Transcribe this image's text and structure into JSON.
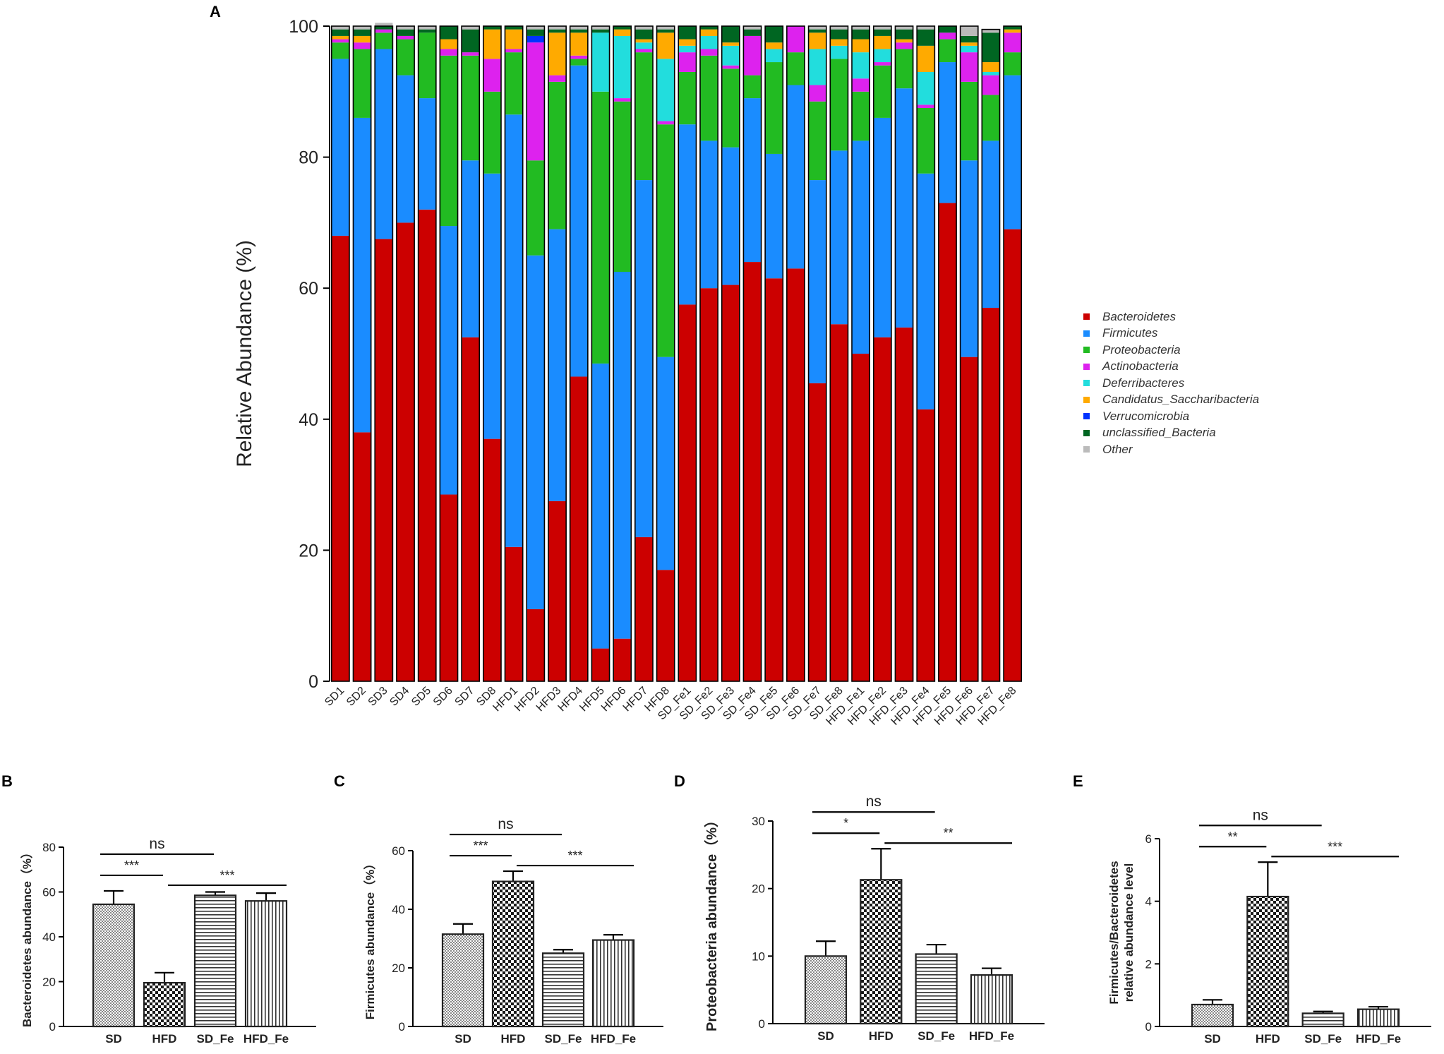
{
  "chart_data": [
    {
      "panel": "A",
      "type": "bar",
      "stacked": true,
      "ylabel": "Relative Abundance (%)",
      "ylim": [
        0,
        100
      ],
      "yticks": [
        0,
        20,
        40,
        60,
        80,
        100
      ],
      "categories": [
        "SD1",
        "SD2",
        "SD3",
        "SD4",
        "SD5",
        "SD6",
        "SD7",
        "SD8",
        "HFD1",
        "HFD2",
        "HFD3",
        "HFD4",
        "HFD5",
        "HFD6",
        "HFD7",
        "HFD8",
        "SD_Fe1",
        "SD_Fe2",
        "SD_Fe3",
        "SD_Fe4",
        "SD_Fe5",
        "SD_Fe6",
        "SD_Fe7",
        "SD_Fe8",
        "HFD_Fe1",
        "HFD_Fe2",
        "HFD_Fe3",
        "HFD_Fe4",
        "HFD_Fe5",
        "HFD_Fe6",
        "HFD_Fe7",
        "HFD_Fe8"
      ],
      "series": [
        {
          "name": "Bacteroidetes",
          "color": "#cc0000",
          "values": [
            68,
            38,
            67.5,
            70,
            72,
            28.5,
            52.5,
            37,
            20.5,
            11,
            27.5,
            46.5,
            5,
            6.5,
            22,
            17,
            57.5,
            60,
            60.5,
            64,
            61.5,
            63,
            45.5,
            54.5,
            50,
            52.5,
            54,
            41.5,
            73,
            49.5,
            57,
            69
          ]
        },
        {
          "name": "Firmicutes",
          "color": "#1a8cff",
          "values": [
            27,
            48,
            29,
            22.5,
            17,
            41,
            27,
            40.5,
            66,
            54,
            41.5,
            47.5,
            43.5,
            56,
            54.5,
            32.5,
            27.5,
            22.5,
            21,
            25,
            19,
            28,
            31,
            26.5,
            32.5,
            33.5,
            36.5,
            36,
            21.5,
            30,
            25.5,
            23.5
          ]
        },
        {
          "name": "Proteobacteria",
          "color": "#22bb22",
          "values": [
            2.5,
            10.5,
            2.5,
            5.5,
            10,
            26,
            16,
            12.5,
            9.5,
            14.5,
            22.5,
            1,
            41.5,
            26,
            19.5,
            35.5,
            8,
            13,
            12,
            3.5,
            14,
            5,
            12,
            14,
            7.5,
            8,
            6,
            10,
            3.5,
            12,
            7,
            3.5
          ]
        },
        {
          "name": "Actinobacteria",
          "color": "#dd22ee",
          "values": [
            0.5,
            1,
            0.5,
            0.5,
            0,
            1,
            0.5,
            5,
            0.5,
            18,
            1,
            0.5,
            0,
            0.5,
            0.5,
            0.5,
            3,
            1,
            0.5,
            6,
            0,
            4,
            2.5,
            0,
            2,
            0.5,
            1,
            0.5,
            1,
            4.5,
            3,
            3
          ]
        },
        {
          "name": "Deferribacteres",
          "color": "#22dddd",
          "values": [
            0,
            0,
            0,
            0,
            0,
            0,
            0,
            0,
            0,
            0,
            0,
            0,
            9,
            9.5,
            1,
            9.5,
            1,
            2,
            3,
            0,
            2,
            0,
            5.5,
            2,
            4,
            2,
            0,
            5,
            0,
            1,
            0.5,
            0
          ]
        },
        {
          "name": "Candidatus_Saccharibacteria",
          "color": "#ffaa00",
          "values": [
            0.5,
            1,
            0,
            0,
            0,
            1.5,
            0,
            4.5,
            3,
            0,
            6.5,
            3.5,
            0,
            1,
            0.5,
            4,
            1,
            1,
            0.5,
            0,
            1,
            0,
            2.5,
            1,
            2,
            2,
            0.5,
            4,
            0,
            0.5,
            1.5,
            0.5
          ]
        },
        {
          "name": "Verrucomicrobia",
          "color": "#0033ff",
          "values": [
            0,
            0,
            0,
            0,
            0,
            0,
            0,
            0,
            0,
            1,
            0,
            0,
            0,
            0,
            0,
            0,
            0,
            0,
            0,
            0,
            0,
            0,
            0,
            0,
            0,
            0,
            0,
            0,
            0,
            0,
            0,
            0
          ]
        },
        {
          "name": "unclassified_Bacteria",
          "color": "#006622",
          "values": [
            1,
            1,
            0.5,
            1,
            0.5,
            2,
            3.5,
            0.5,
            0.5,
            1,
            0.5,
            0.5,
            0.5,
            0.5,
            1.5,
            0.5,
            2,
            0.5,
            2.5,
            1,
            2.5,
            0,
            0.5,
            1.5,
            1.5,
            1,
            1.5,
            2.5,
            1,
            1,
            4.5,
            0.5
          ]
        },
        {
          "name": "Other",
          "color": "#bbbbbb",
          "values": [
            0.5,
            0.5,
            0.5,
            0.5,
            0.5,
            0,
            0.5,
            0,
            0,
            0.5,
            0.5,
            0.5,
            0.5,
            0,
            0.5,
            0.5,
            0,
            0,
            0,
            0.5,
            0,
            0,
            0.5,
            0.5,
            0.5,
            0.5,
            0.5,
            0.5,
            0,
            1.5,
            0.5,
            0
          ]
        }
      ],
      "legend": "right"
    },
    {
      "panel": "B",
      "type": "bar",
      "ylabel": "Bacteroidetes abundance（%）",
      "ylim": [
        0,
        80
      ],
      "yticks": [
        0,
        20,
        40,
        60,
        80
      ],
      "categories": [
        "SD",
        "HFD",
        "SD_Fe",
        "HFD_Fe"
      ],
      "values": [
        54.5,
        19.5,
        58.5,
        56
      ],
      "errors": [
        6,
        4.5,
        1.5,
        3.5
      ],
      "patterns": [
        "dots",
        "checker",
        "hlines",
        "vlines"
      ],
      "significance": [
        {
          "from": 0,
          "to": 1,
          "label": "***",
          "level": 0
        },
        {
          "from": 1,
          "to": 3,
          "label": "***",
          "level": 1
        },
        {
          "from": 0,
          "to": 2,
          "label": "ns",
          "level": 2
        }
      ]
    },
    {
      "panel": "C",
      "type": "bar",
      "ylabel": "Firmicutes abundance（%）",
      "ylim": [
        0,
        60
      ],
      "yticks": [
        0,
        20,
        40,
        60
      ],
      "categories": [
        "SD",
        "HFD",
        "SD_Fe",
        "HFD_Fe"
      ],
      "values": [
        31.5,
        49.5,
        25,
        29.5
      ],
      "errors": [
        3.5,
        3.5,
        1.2,
        1.8
      ],
      "patterns": [
        "dots",
        "checker",
        "hlines",
        "vlines"
      ],
      "significance": [
        {
          "from": 0,
          "to": 1,
          "label": "***",
          "level": 0
        },
        {
          "from": 1,
          "to": 3,
          "label": "***",
          "level": 1
        },
        {
          "from": 0,
          "to": 2,
          "label": "ns",
          "level": 2
        }
      ]
    },
    {
      "panel": "D",
      "type": "bar",
      "ylabel": "Proteobacteria abundance（%）",
      "ylim": [
        0,
        30
      ],
      "yticks": [
        0,
        10,
        20,
        30
      ],
      "categories": [
        "SD",
        "HFD",
        "SD_Fe",
        "HFD_Fe"
      ],
      "values": [
        10,
        21.3,
        10.3,
        7.2
      ],
      "errors": [
        2.2,
        4.6,
        1.4,
        1
      ],
      "patterns": [
        "dots",
        "checker",
        "hlines",
        "vlines"
      ],
      "significance": [
        {
          "from": 0,
          "to": 1,
          "label": "*",
          "level": 0
        },
        {
          "from": 1,
          "to": 3,
          "label": "**",
          "level": 1
        },
        {
          "from": 0,
          "to": 2,
          "label": "ns",
          "level": 2
        }
      ]
    },
    {
      "panel": "E",
      "type": "bar",
      "ylabel": "Firmicutes/Bacteroidetes relative abundance level",
      "ylabel_lines": [
        "Firmicutes/Bacteroidetes",
        "relative abundance level"
      ],
      "ylim": [
        0,
        6
      ],
      "yticks": [
        0,
        2,
        4,
        6
      ],
      "categories": [
        "SD",
        "HFD",
        "SD_Fe",
        "HFD_Fe"
      ],
      "values": [
        0.7,
        4.15,
        0.42,
        0.55
      ],
      "errors": [
        0.15,
        1.1,
        0.06,
        0.08
      ],
      "patterns": [
        "dots",
        "checker",
        "hlines",
        "vlines"
      ],
      "significance": [
        {
          "from": 0,
          "to": 1,
          "label": "**",
          "level": 0
        },
        {
          "from": 1,
          "to": 3,
          "label": "***",
          "level": 1
        },
        {
          "from": 0,
          "to": 2,
          "label": "ns",
          "level": 2
        }
      ]
    }
  ]
}
